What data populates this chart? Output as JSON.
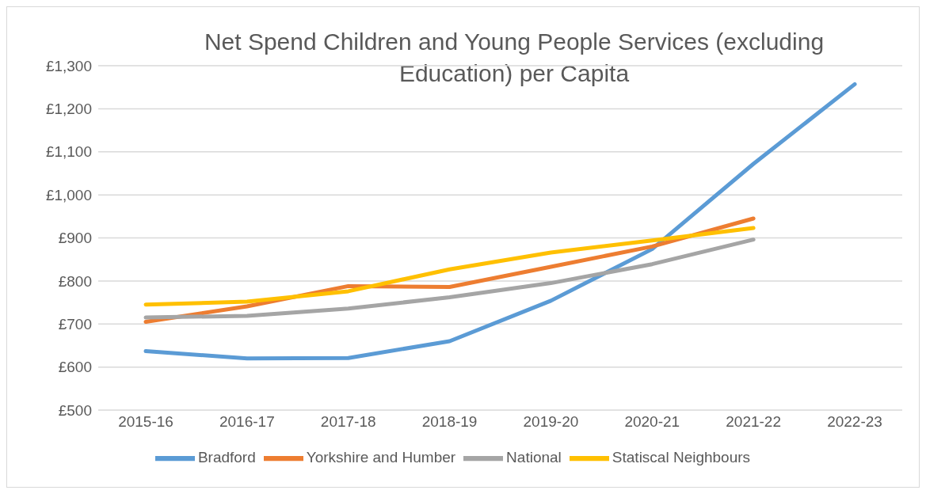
{
  "chart_data": {
    "type": "line",
    "title": "Net Spend Children and Young People Services (excluding Education) per Capita",
    "categories": [
      "2015-16",
      "2016-17",
      "2017-18",
      "2018-19",
      "2019-20",
      "2020-21",
      "2021-22",
      "2022-23"
    ],
    "series": [
      {
        "name": "Bradford",
        "color": "#5b9bd5",
        "values": [
          637,
          620,
          621,
          660,
          754,
          874,
          1072,
          1257
        ]
      },
      {
        "name": "Yorkshire and Humber",
        "color": "#ed7d31",
        "values": [
          705,
          741,
          788,
          786,
          833,
          880,
          945,
          null
        ]
      },
      {
        "name": "National",
        "color": "#a5a5a5",
        "values": [
          715,
          719,
          736,
          762,
          795,
          839,
          896,
          null
        ]
      },
      {
        "name": "Statiscal Neighbours",
        "color": "#ffc000",
        "values": [
          745,
          752,
          776,
          827,
          866,
          894,
          923,
          null
        ]
      }
    ],
    "ylim": [
      500,
      1300
    ],
    "yticks": [
      {
        "value": 500,
        "label": "£500"
      },
      {
        "value": 600,
        "label": "£600"
      },
      {
        "value": 700,
        "label": "£700"
      },
      {
        "value": 800,
        "label": "£800"
      },
      {
        "value": 900,
        "label": "£900"
      },
      {
        "value": 1000,
        "label": "£1,000"
      },
      {
        "value": 1100,
        "label": "£1,100"
      },
      {
        "value": 1200,
        "label": "£1,200"
      },
      {
        "value": 1300,
        "label": "£1,300"
      }
    ],
    "grid": "y",
    "legend": "bottom",
    "marker": "none",
    "line_style": "solid"
  }
}
